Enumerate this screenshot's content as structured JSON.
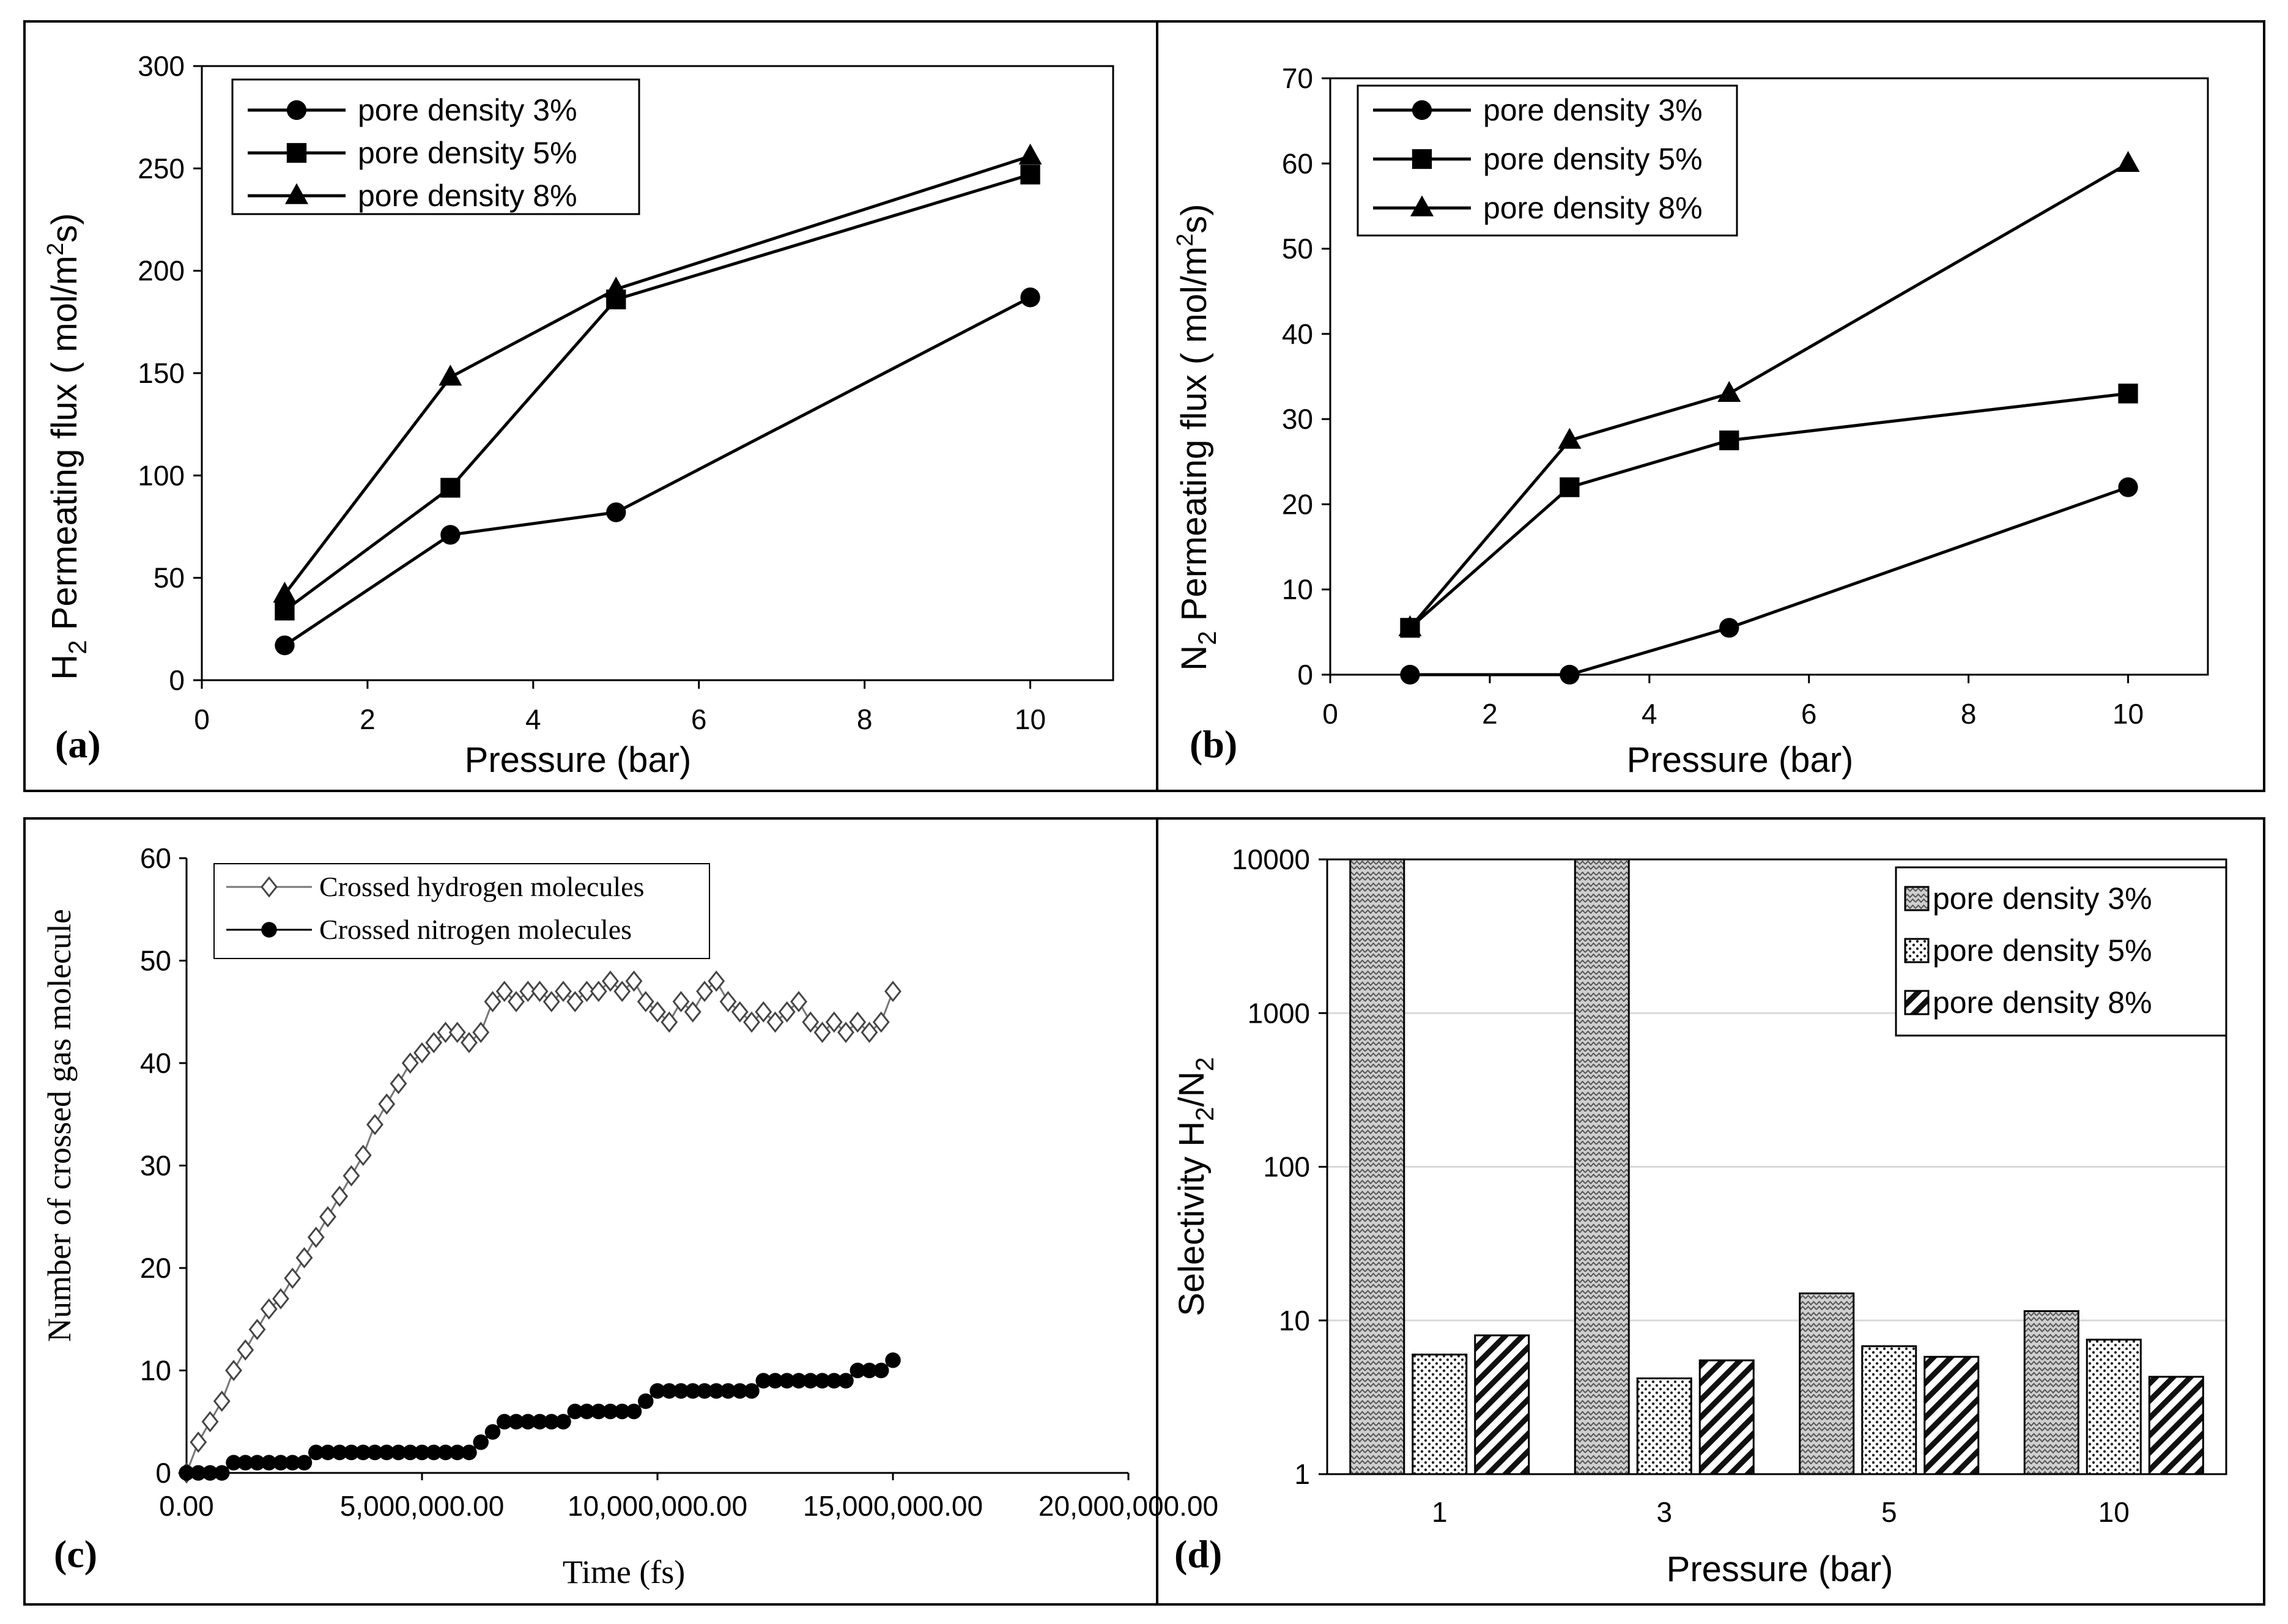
{
  "chart_data": [
    {
      "id": "a",
      "type": "line",
      "panel_label": "(a)",
      "title": "",
      "xlabel": "Pressure (bar)",
      "ylabel": "H2 Permeating flux ( mol/m2s)",
      "ylabel_parts": {
        "lead": "H",
        "sub": "2",
        "mid": " Permeating flux ( mol/m",
        "sup": "2",
        "tail": "s)"
      },
      "xlim": [
        0,
        11
      ],
      "ylim": [
        0,
        300
      ],
      "xticks": [
        0,
        2,
        4,
        6,
        8,
        10
      ],
      "yticks": [
        0,
        50,
        100,
        150,
        200,
        250,
        300
      ],
      "x": [
        1,
        3,
        5,
        10
      ],
      "series": [
        {
          "name": "pore density 3%",
          "marker": "circle",
          "values": [
            17,
            71,
            82,
            187
          ]
        },
        {
          "name": "pore density 5%",
          "marker": "square",
          "values": [
            34,
            94,
            186,
            247
          ]
        },
        {
          "name": "pore density 8%",
          "marker": "triangle",
          "values": [
            42,
            148,
            191,
            256
          ]
        }
      ],
      "legend_position": "top-left"
    },
    {
      "id": "b",
      "type": "line",
      "panel_label": "(b)",
      "title": "",
      "xlabel": "Pressure (bar)",
      "ylabel": "N2 Permeating flux ( mol/m2s)",
      "ylabel_parts": {
        "lead": "N",
        "sub": "2",
        "mid": " Permeating flux ( mol/m",
        "sup": "2",
        "tail": "s)"
      },
      "xlim": [
        0,
        11
      ],
      "ylim": [
        0,
        70
      ],
      "xticks": [
        0,
        2,
        4,
        6,
        8,
        10
      ],
      "yticks": [
        0,
        10,
        20,
        30,
        40,
        50,
        60,
        70
      ],
      "x": [
        1,
        3,
        5,
        10
      ],
      "series": [
        {
          "name": "pore density 3%",
          "marker": "circle",
          "values": [
            0,
            0,
            5.5,
            22
          ]
        },
        {
          "name": "pore density 5%",
          "marker": "square",
          "values": [
            5.5,
            22,
            27.5,
            33
          ]
        },
        {
          "name": "pore density 8%",
          "marker": "triangle",
          "values": [
            5.5,
            27.5,
            33,
            60
          ]
        }
      ],
      "legend_position": "top-left"
    },
    {
      "id": "c",
      "type": "scatter",
      "panel_label": "(c)",
      "title": "",
      "xlabel": "Time (fs)",
      "ylabel": "Number of crossed gas molecule",
      "xlim": [
        0,
        20000000
      ],
      "ylim": [
        0,
        60
      ],
      "xticks": [
        0,
        5000000,
        10000000,
        15000000,
        20000000
      ],
      "xtick_labels": [
        "0.00",
        "5,000,000.00",
        "10,000,000.00",
        "15,000,000.00",
        "20,000,000.00"
      ],
      "yticks": [
        0,
        10,
        20,
        30,
        40,
        50,
        60
      ],
      "series": [
        {
          "name": "Crossed hydrogen molecules",
          "marker": "open-diamond",
          "x": [
            0,
            250000,
            500000,
            750000,
            1000000,
            1250000,
            1500000,
            1750000,
            2000000,
            2250000,
            2500000,
            2750000,
            3000000,
            3250000,
            3500000,
            3750000,
            4000000,
            4250000,
            4500000,
            4750000,
            5000000,
            5250000,
            5500000,
            5750000,
            6000000,
            6250000,
            6500000,
            6750000,
            7000000,
            7250000,
            7500000,
            7750000,
            8000000,
            8250000,
            8500000,
            8750000,
            9000000,
            9250000,
            9500000,
            9750000,
            10000000,
            10250000,
            10500000,
            10750000,
            11000000,
            11250000,
            11500000,
            11750000,
            12000000,
            12250000,
            12500000,
            12750000,
            13000000,
            13250000,
            13500000,
            13750000,
            14000000,
            14250000,
            14500000,
            14750000,
            15000000
          ],
          "values": [
            0,
            3,
            5,
            7,
            10,
            12,
            14,
            16,
            17,
            19,
            21,
            23,
            25,
            27,
            29,
            31,
            34,
            36,
            38,
            40,
            41,
            42,
            43,
            43,
            42,
            43,
            46,
            47,
            46,
            47,
            47,
            46,
            47,
            46,
            47,
            47,
            48,
            47,
            48,
            46,
            45,
            44,
            46,
            45,
            47,
            48,
            46,
            45,
            44,
            45,
            44,
            45,
            46,
            44,
            43,
            44,
            43,
            44,
            43,
            44,
            47
          ]
        },
        {
          "name": "Crossed nitrogen molecules",
          "marker": "filled-circle",
          "x": [
            0,
            250000,
            500000,
            750000,
            1000000,
            1250000,
            1500000,
            1750000,
            2000000,
            2250000,
            2500000,
            2750000,
            3000000,
            3250000,
            3500000,
            3750000,
            4000000,
            4250000,
            4500000,
            4750000,
            5000000,
            5250000,
            5500000,
            5750000,
            6000000,
            6250000,
            6500000,
            6750000,
            7000000,
            7250000,
            7500000,
            7750000,
            8000000,
            8250000,
            8500000,
            8750000,
            9000000,
            9250000,
            9500000,
            9750000,
            10000000,
            10250000,
            10500000,
            10750000,
            11000000,
            11250000,
            11500000,
            11750000,
            12000000,
            12250000,
            12500000,
            12750000,
            13000000,
            13250000,
            13500000,
            13750000,
            14000000,
            14250000,
            14500000,
            14750000,
            15000000
          ],
          "values": [
            0,
            0,
            0,
            0,
            1,
            1,
            1,
            1,
            1,
            1,
            1,
            2,
            2,
            2,
            2,
            2,
            2,
            2,
            2,
            2,
            2,
            2,
            2,
            2,
            2,
            3,
            4,
            5,
            5,
            5,
            5,
            5,
            5,
            6,
            6,
            6,
            6,
            6,
            6,
            7,
            8,
            8,
            8,
            8,
            8,
            8,
            8,
            8,
            8,
            9,
            9,
            9,
            9,
            9,
            9,
            9,
            9,
            10,
            10,
            10,
            11
          ]
        }
      ],
      "legend_position": "top-left"
    },
    {
      "id": "d",
      "type": "bar",
      "panel_label": "(d)",
      "title": "",
      "xlabel": "Pressure (bar)",
      "ylabel": "Selectivity H2/N2",
      "ylabel_parts": {
        "lead": "Selectivity H",
        "sub": "2",
        "mid": "/N",
        "sub2": "2"
      },
      "yscale": "log",
      "ylim": [
        1,
        10000
      ],
      "yticks": [
        1,
        10,
        100,
        1000,
        10000
      ],
      "categories": [
        "1",
        "3",
        "5",
        "10"
      ],
      "series": [
        {
          "name": "pore density 3%",
          "pattern": "zigzag",
          "values": [
            10000,
            10000,
            15,
            11.5
          ]
        },
        {
          "name": "pore density 5%",
          "pattern": "dots",
          "values": [
            6,
            4.2,
            6.8,
            7.5
          ]
        },
        {
          "name": "pore density 8%",
          "pattern": "diagonal",
          "values": [
            8,
            5.5,
            5.8,
            4.3
          ]
        }
      ],
      "legend_position": "top-right",
      "grid": true
    }
  ]
}
